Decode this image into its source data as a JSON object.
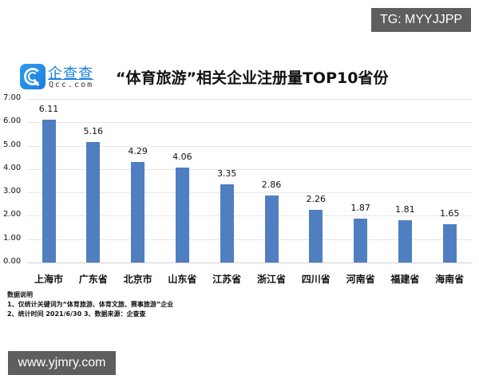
{
  "watermarks": {
    "top": "TG: MYYJJPP",
    "bottom": "www.yjmry.com"
  },
  "brand": {
    "cn": "企查查",
    "en": "Qcc.com",
    "color": "#1a7fe0"
  },
  "title": "“体育旅游”相关企业注册量TOP10省份",
  "bar_color": "#4f7fc0",
  "notes": {
    "heading": "数据说明",
    "line1": "1、仅统计关键词为“体育旅游、体育文旅、赛事旅游”企业",
    "line2": "2、统计时间 2021/6/30    3、数据来源：企查查"
  },
  "chart_data": {
    "type": "bar",
    "title": "“体育旅游”相关企业注册量TOP10省份",
    "xlabel": "",
    "ylabel": "",
    "ylim": [
      0,
      7
    ],
    "yticks": [
      "0.00",
      "1.00",
      "2.00",
      "3.00",
      "4.00",
      "5.00",
      "6.00",
      "7.00"
    ],
    "grid": true,
    "legend": "none",
    "categories": [
      "上海市",
      "广东省",
      "北京市",
      "山东省",
      "江苏省",
      "浙江省",
      "四川省",
      "河南省",
      "福建省",
      "海南省"
    ],
    "values": [
      6.11,
      5.16,
      4.29,
      4.06,
      3.35,
      2.86,
      2.26,
      1.87,
      1.81,
      1.65
    ],
    "value_labels": [
      "6.11",
      "5.16",
      "4.29",
      "4.06",
      "3.35",
      "2.86",
      "2.26",
      "1.87",
      "1.81",
      "1.65"
    ]
  }
}
